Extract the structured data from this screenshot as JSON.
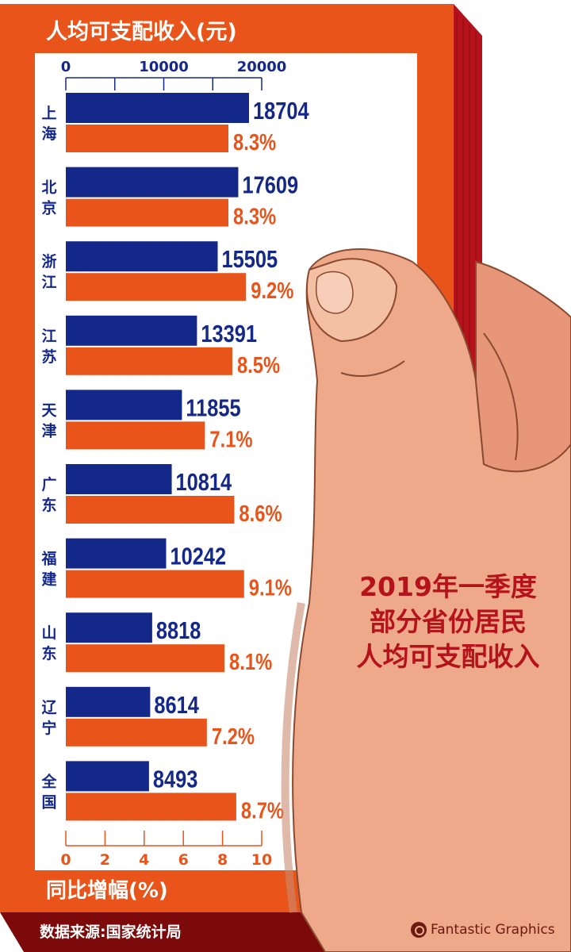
{
  "chart_data": {
    "type": "bar",
    "title": "人均可支配收入(元)",
    "categories": [
      "上海",
      "北京",
      "浙江",
      "江苏",
      "天津",
      "广东",
      "福建",
      "山东",
      "辽宁",
      "全国"
    ],
    "series": [
      {
        "name": "人均可支配收入(元)",
        "values": [
          18704,
          17609,
          15505,
          13391,
          11855,
          10814,
          10242,
          8818,
          8614,
          8493
        ],
        "color": "#14288a",
        "value_labels": [
          "18704",
          "17609",
          "15505",
          "13391",
          "11855",
          "10814",
          "10242",
          "8818",
          "8614",
          "8493"
        ]
      },
      {
        "name": "同比增幅(%)",
        "values": [
          8.3,
          8.3,
          9.2,
          8.5,
          7.1,
          8.6,
          9.1,
          8.1,
          7.2,
          8.7
        ],
        "color": "#e8541a",
        "value_labels": [
          "8.3%",
          "8.3%",
          "9.2%",
          "8.5%",
          "7.1%",
          "8.6%",
          "9.1%",
          "8.1%",
          "7.2%",
          "8.7%"
        ]
      }
    ],
    "top_axis": {
      "range": [
        0,
        20000
      ],
      "tick_labels": [
        "0",
        "10000",
        "20000"
      ],
      "ticks": [
        0,
        5000,
        10000,
        15000,
        20000
      ]
    },
    "bottom_axis": {
      "label": "同比增幅(%)",
      "range": [
        0,
        10
      ],
      "tick_labels": [
        "0",
        "2",
        "4",
        "6",
        "8",
        "10"
      ]
    },
    "grid": false
  },
  "headline": [
    "2019年一季度",
    "部分省份居民",
    "人均可支配收入"
  ],
  "source": "数据来源:国家统计局",
  "brand": "Fantastic Graphics",
  "colors": {
    "card": "#e8541a",
    "income": "#14288a",
    "headline": "#b5121b",
    "footer": "#7d0a0a"
  }
}
